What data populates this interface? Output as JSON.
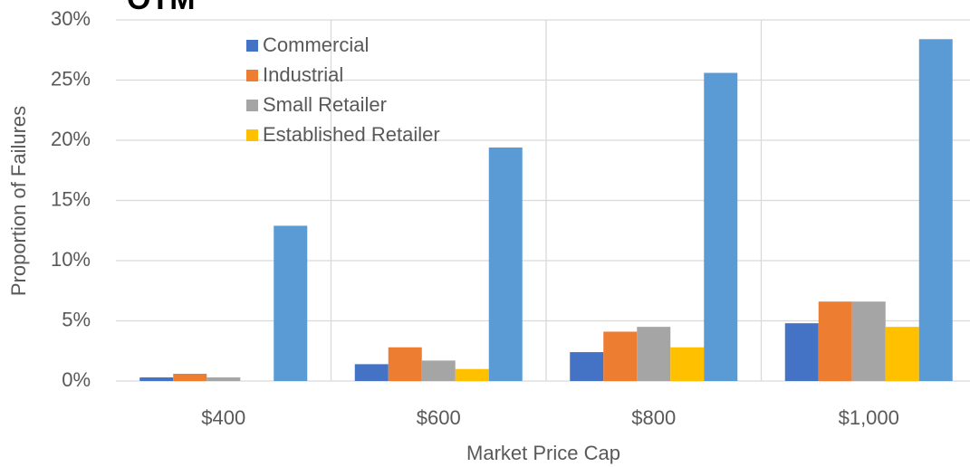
{
  "chart_data": {
    "type": "bar",
    "title": "OTM",
    "x_label": "Market Price Cap",
    "y_label": "Proportion of Failures",
    "categories": [
      "$400",
      "$600",
      "$800",
      "$1,000"
    ],
    "series": [
      {
        "name": "Commercial",
        "color": "#4472c4",
        "values": [
          0.3,
          1.4,
          2.4,
          4.8
        ]
      },
      {
        "name": "Industrial",
        "color": "#ed7d31",
        "values": [
          0.6,
          2.8,
          4.1,
          6.6
        ]
      },
      {
        "name": "Small Retailer",
        "color": "#a5a5a5",
        "values": [
          0.3,
          1.7,
          4.5,
          6.6
        ]
      },
      {
        "name": "Established Retailer",
        "color": "#ffc000",
        "values": [
          0,
          1.0,
          2.8,
          4.5
        ]
      },
      {
        "color": "#5b9bd5",
        "values": [
          12.9,
          19.4,
          25.6,
          28.4
        ]
      }
    ],
    "ylim": [
      0,
      30
    ],
    "yticks": [
      {
        "value": 0,
        "label": "0%"
      },
      {
        "value": 5,
        "label": "5%"
      },
      {
        "value": 10,
        "label": "10%"
      },
      {
        "value": 15,
        "label": "15%"
      },
      {
        "value": 20,
        "label": "20%"
      },
      {
        "value": 25,
        "label": "25%"
      },
      {
        "value": 30,
        "label": "30%"
      }
    ],
    "grid": true,
    "legend": "top-left"
  }
}
